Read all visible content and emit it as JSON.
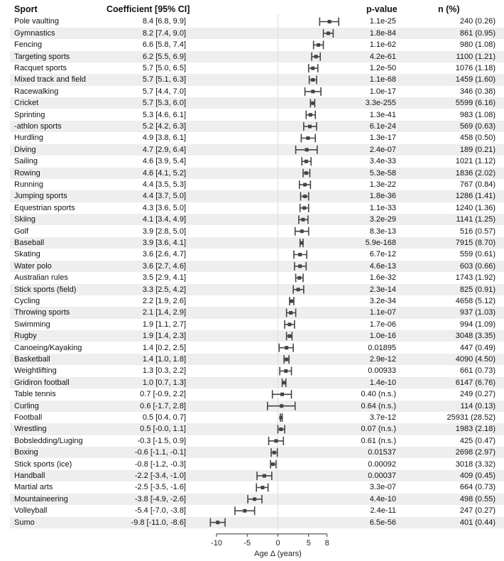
{
  "headers": {
    "sport": "Sport",
    "coef": "Coefficient [95% CI]",
    "pvalue": "p-value",
    "n": "n (%)"
  },
  "rows": [
    {
      "sport": "Pole vaulting",
      "coef_text": "8.4 [6.8, 9.9]",
      "pvalue": "1.1e-25",
      "n": "240 (0.26)"
    },
    {
      "sport": "Gymnastics",
      "coef_text": "8.2 [7.4, 9.0]",
      "pvalue": "1.8e-84",
      "n": "861 (0.95)"
    },
    {
      "sport": "Fencing",
      "coef_text": "6.6 [5.8, 7.4]",
      "pvalue": "1.1e-62",
      "n": "980 (1.08)"
    },
    {
      "sport": "Targeting sports",
      "coef_text": "6.2 [5.5, 6.9]",
      "pvalue": "4.2e-61",
      "n": "1100 (1.21)"
    },
    {
      "sport": "Racquet sports",
      "coef_text": "5.7 [5.0, 6.5]",
      "pvalue": "1.2e-50",
      "n": "1076 (1.18)"
    },
    {
      "sport": "Mixed track and field",
      "coef_text": "5.7 [5.1, 6.3]",
      "pvalue": "1.1e-68",
      "n": "1459 (1.60)"
    },
    {
      "sport": "Racewalking",
      "coef_text": "5.7 [4.4, 7.0]",
      "pvalue": "1.0e-17",
      "n": "346 (0.38)"
    },
    {
      "sport": "Cricket",
      "coef_text": "5.7 [5.3, 6.0]",
      "pvalue": "3.3e-255",
      "n": "5599 (6.16)"
    },
    {
      "sport": "Sprinting",
      "coef_text": "5.3 [4.6, 6.1]",
      "pvalue": "1.3e-41",
      "n": "983 (1.08)"
    },
    {
      "sport": "-athlon sports",
      "coef_text": "5.2 [4.2, 6.3]",
      "pvalue": "6.1e-24",
      "n": "569 (0.63)"
    },
    {
      "sport": "Hurdling",
      "coef_text": "4.9 [3.8, 6.1]",
      "pvalue": "1.3e-17",
      "n": "458 (0.50)"
    },
    {
      "sport": "Diving",
      "coef_text": "4.7 [2.9, 6.4]",
      "pvalue": "2.4e-07",
      "n": "189 (0.21)"
    },
    {
      "sport": "Sailing",
      "coef_text": "4.6 [3.9, 5.4]",
      "pvalue": "3.4e-33",
      "n": "1021 (1.12)"
    },
    {
      "sport": "Rowing",
      "coef_text": "4.6 [4.1, 5.2]",
      "pvalue": "5.3e-58",
      "n": "1836 (2.02)"
    },
    {
      "sport": "Running",
      "coef_text": "4.4 [3.5, 5.3]",
      "pvalue": "1.3e-22",
      "n": "767 (0.84)"
    },
    {
      "sport": "Jumping sports",
      "coef_text": "4.4 [3.7, 5.0]",
      "pvalue": "1.8e-36",
      "n": "1286 (1.41)"
    },
    {
      "sport": "Equestrian sports",
      "coef_text": "4.3 [3.6, 5.0]",
      "pvalue": "1.1e-33",
      "n": "1240 (1.36)"
    },
    {
      "sport": "Skiing",
      "coef_text": "4.1 [3.4, 4.9]",
      "pvalue": "3.2e-29",
      "n": "1141 (1.25)"
    },
    {
      "sport": "Golf",
      "coef_text": "3.9 [2.8, 5.0]",
      "pvalue": "8.3e-13",
      "n": "516 (0.57)"
    },
    {
      "sport": "Baseball",
      "coef_text": "3.9 [3.6, 4.1]",
      "pvalue": "5.9e-168",
      "n": "7915 (8.70)"
    },
    {
      "sport": "Skating",
      "coef_text": "3.6 [2.6, 4.7]",
      "pvalue": "6.7e-12",
      "n": "559 (0.61)"
    },
    {
      "sport": "Water polo",
      "coef_text": "3.6 [2.7, 4.6]",
      "pvalue": "4.6e-13",
      "n": "603 (0.66)"
    },
    {
      "sport": "Australian rules",
      "coef_text": "3.5 [2.9, 4.1]",
      "pvalue": "1.6e-32",
      "n": "1743 (1.92)"
    },
    {
      "sport": "Stick sports (field)",
      "coef_text": "3.3 [2.5, 4.2]",
      "pvalue": "2.3e-14",
      "n": "825 (0.91)"
    },
    {
      "sport": "Cycling",
      "coef_text": "2.2 [1.9, 2.6]",
      "pvalue": "3.2e-34",
      "n": "4658 (5.12)"
    },
    {
      "sport": "Throwing sports",
      "coef_text": "2.1 [1.4, 2.9]",
      "pvalue": "1.1e-07",
      "n": "937 (1.03)"
    },
    {
      "sport": "Swimming",
      "coef_text": "1.9 [1.1, 2.7]",
      "pvalue": "1.7e-06",
      "n": "994 (1.09)"
    },
    {
      "sport": "Rugby",
      "coef_text": "1.9 [1.4, 2.3]",
      "pvalue": "1.0e-16",
      "n": "3048 (3.35)"
    },
    {
      "sport": "Canoeing/Kayaking",
      "coef_text": "1.4 [0.2, 2.5]",
      "pvalue": "0.01895",
      "n": "447 (0.49)"
    },
    {
      "sport": "Basketball",
      "coef_text": "1.4 [1.0, 1.8]",
      "pvalue": "2.9e-12",
      "n": "4090 (4.50)"
    },
    {
      "sport": "Weightlifting",
      "coef_text": "1.3 [0.3, 2.2]",
      "pvalue": "0.00933",
      "n": "661 (0.73)"
    },
    {
      "sport": "Gridiron football",
      "coef_text": "1.0 [0.7, 1.3]",
      "pvalue": "1.4e-10",
      "n": "6147 (6.76)"
    },
    {
      "sport": "Table tennis",
      "coef_text": "0.7 [-0.9, 2.2]",
      "pvalue": "0.40 (n.s.)",
      "n": "249 (0.27)"
    },
    {
      "sport": "Curling",
      "coef_text": "0.6 [-1.7, 2.8]",
      "pvalue": "0.64 (n.s.)",
      "n": "114 (0.13)"
    },
    {
      "sport": "Football",
      "coef_text": "0.5 [0.4, 0.7]",
      "pvalue": "3.7e-12",
      "n": "25931 (28.52)"
    },
    {
      "sport": "Wrestling",
      "coef_text": "0.5 [-0.0, 1.1]",
      "pvalue": "0.07 (n.s.)",
      "n": "1983 (2.18)"
    },
    {
      "sport": "Bobsledding/Luging",
      "coef_text": "-0.3 [-1.5, 0.9]",
      "pvalue": "0.61 (n.s.)",
      "n": "425 (0.47)"
    },
    {
      "sport": "Boxing",
      "coef_text": "-0.6 [-1.1, -0.1]",
      "pvalue": "0.01537",
      "n": "2698 (2.97)"
    },
    {
      "sport": "Stick sports (ice)",
      "coef_text": "-0.8 [-1.2, -0.3]",
      "pvalue": "0.00092",
      "n": "3018 (3.32)"
    },
    {
      "sport": "Handball",
      "coef_text": "-2.2 [-3.4, -1.0]",
      "pvalue": "0.00037",
      "n": "409 (0.45)"
    },
    {
      "sport": "Martial arts",
      "coef_text": "-2.5 [-3.5, -1.6]",
      "pvalue": "3.3e-07",
      "n": "664 (0.73)"
    },
    {
      "sport": "Mountaineering",
      "coef_text": "-3.8 [-4.9, -2.6]",
      "pvalue": "4.4e-10",
      "n": "498 (0.55)"
    },
    {
      "sport": "Volleyball",
      "coef_text": "-5.4 [-7.0, -3.8]",
      "pvalue": "2.4e-11",
      "n": "247 (0.27)"
    },
    {
      "sport": "Sumo",
      "coef_text": "-9.8 [-11.0, -8.6]",
      "pvalue": "6.5e-56",
      "n": "401 (0.44)"
    }
  ],
  "chart_data": {
    "type": "forest",
    "xlabel": "Age Δ (years)",
    "xticks": [
      -10,
      -5,
      0,
      5,
      8
    ],
    "xlim": [
      -11,
      8.4
    ],
    "reference_line": 0,
    "grid": false,
    "series": [
      {
        "label": "Pole vaulting",
        "estimate": 8.4,
        "lower": 6.8,
        "upper": 9.9
      },
      {
        "label": "Gymnastics",
        "estimate": 8.2,
        "lower": 7.4,
        "upper": 9.0
      },
      {
        "label": "Fencing",
        "estimate": 6.6,
        "lower": 5.8,
        "upper": 7.4
      },
      {
        "label": "Targeting sports",
        "estimate": 6.2,
        "lower": 5.5,
        "upper": 6.9
      },
      {
        "label": "Racquet sports",
        "estimate": 5.7,
        "lower": 5.0,
        "upper": 6.5
      },
      {
        "label": "Mixed track and field",
        "estimate": 5.7,
        "lower": 5.1,
        "upper": 6.3
      },
      {
        "label": "Racewalking",
        "estimate": 5.7,
        "lower": 4.4,
        "upper": 7.0
      },
      {
        "label": "Cricket",
        "estimate": 5.7,
        "lower": 5.3,
        "upper": 6.0
      },
      {
        "label": "Sprinting",
        "estimate": 5.3,
        "lower": 4.6,
        "upper": 6.1
      },
      {
        "label": "-athlon sports",
        "estimate": 5.2,
        "lower": 4.2,
        "upper": 6.3
      },
      {
        "label": "Hurdling",
        "estimate": 4.9,
        "lower": 3.8,
        "upper": 6.1
      },
      {
        "label": "Diving",
        "estimate": 4.7,
        "lower": 2.9,
        "upper": 6.4
      },
      {
        "label": "Sailing",
        "estimate": 4.6,
        "lower": 3.9,
        "upper": 5.4
      },
      {
        "label": "Rowing",
        "estimate": 4.6,
        "lower": 4.1,
        "upper": 5.2
      },
      {
        "label": "Running",
        "estimate": 4.4,
        "lower": 3.5,
        "upper": 5.3
      },
      {
        "label": "Jumping sports",
        "estimate": 4.4,
        "lower": 3.7,
        "upper": 5.0
      },
      {
        "label": "Equestrian sports",
        "estimate": 4.3,
        "lower": 3.6,
        "upper": 5.0
      },
      {
        "label": "Skiing",
        "estimate": 4.1,
        "lower": 3.4,
        "upper": 4.9
      },
      {
        "label": "Golf",
        "estimate": 3.9,
        "lower": 2.8,
        "upper": 5.0
      },
      {
        "label": "Baseball",
        "estimate": 3.9,
        "lower": 3.6,
        "upper": 4.1
      },
      {
        "label": "Skating",
        "estimate": 3.6,
        "lower": 2.6,
        "upper": 4.7
      },
      {
        "label": "Water polo",
        "estimate": 3.6,
        "lower": 2.7,
        "upper": 4.6
      },
      {
        "label": "Australian rules",
        "estimate": 3.5,
        "lower": 2.9,
        "upper": 4.1
      },
      {
        "label": "Stick sports (field)",
        "estimate": 3.3,
        "lower": 2.5,
        "upper": 4.2
      },
      {
        "label": "Cycling",
        "estimate": 2.2,
        "lower": 1.9,
        "upper": 2.6
      },
      {
        "label": "Throwing sports",
        "estimate": 2.1,
        "lower": 1.4,
        "upper": 2.9
      },
      {
        "label": "Swimming",
        "estimate": 1.9,
        "lower": 1.1,
        "upper": 2.7
      },
      {
        "label": "Rugby",
        "estimate": 1.9,
        "lower": 1.4,
        "upper": 2.3
      },
      {
        "label": "Canoeing/Kayaking",
        "estimate": 1.4,
        "lower": 0.2,
        "upper": 2.5
      },
      {
        "label": "Basketball",
        "estimate": 1.4,
        "lower": 1.0,
        "upper": 1.8
      },
      {
        "label": "Weightlifting",
        "estimate": 1.3,
        "lower": 0.3,
        "upper": 2.2
      },
      {
        "label": "Gridiron football",
        "estimate": 1.0,
        "lower": 0.7,
        "upper": 1.3
      },
      {
        "label": "Table tennis",
        "estimate": 0.7,
        "lower": -0.9,
        "upper": 2.2
      },
      {
        "label": "Curling",
        "estimate": 0.6,
        "lower": -1.7,
        "upper": 2.8
      },
      {
        "label": "Football",
        "estimate": 0.5,
        "lower": 0.4,
        "upper": 0.7
      },
      {
        "label": "Wrestling",
        "estimate": 0.5,
        "lower": -0.0,
        "upper": 1.1
      },
      {
        "label": "Bobsledding/Luging",
        "estimate": -0.3,
        "lower": -1.5,
        "upper": 0.9
      },
      {
        "label": "Boxing",
        "estimate": -0.6,
        "lower": -1.1,
        "upper": -0.1
      },
      {
        "label": "Stick sports (ice)",
        "estimate": -0.8,
        "lower": -1.2,
        "upper": -0.3
      },
      {
        "label": "Handball",
        "estimate": -2.2,
        "lower": -3.4,
        "upper": -1.0
      },
      {
        "label": "Martial arts",
        "estimate": -2.5,
        "lower": -3.5,
        "upper": -1.6
      },
      {
        "label": "Mountaineering",
        "estimate": -3.8,
        "lower": -4.9,
        "upper": -2.6
      },
      {
        "label": "Volleyball",
        "estimate": -5.4,
        "lower": -7.0,
        "upper": -3.8
      },
      {
        "label": "Sumo",
        "estimate": -9.8,
        "lower": -11.0,
        "upper": -8.6
      }
    ],
    "colors": {
      "mark": "#444444",
      "row_alt": "#eeeeee",
      "reference_line": "#dddddd"
    }
  }
}
